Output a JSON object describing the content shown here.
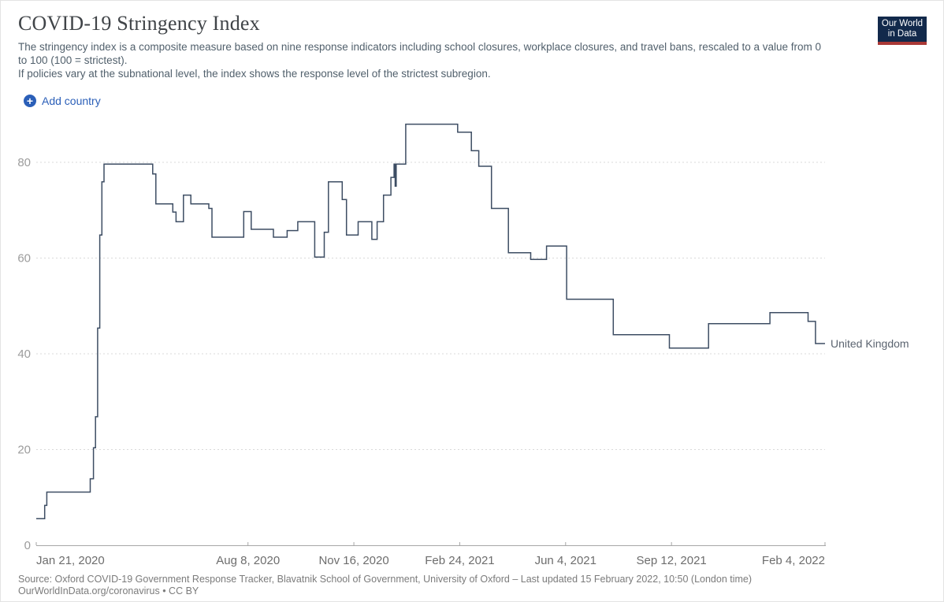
{
  "header": {
    "title": "COVID-19 Stringency Index",
    "subtitle_line1": "The stringency index is a composite measure based on nine response indicators including school closures, workplace closures, and travel bans, rescaled to a value from 0 to 100 (100 = strictest).",
    "subtitle_line2": "If policies vary at the subnational level, the index shows the response level of the strictest subregion.",
    "logo": {
      "line1": "Our World",
      "line2": "in Data"
    }
  },
  "controls": {
    "add_country_label": "Add country",
    "plus_glyph": "+"
  },
  "chart_data": {
    "type": "line",
    "title": "COVID-19 Stringency Index",
    "x_start_date": "2020-01-21",
    "x_end_date": "2022-02-04",
    "ylim": [
      0,
      90
    ],
    "grid": "dashed-horizontal",
    "legend_position": "end-of-line-label",
    "y_ticks": [
      0,
      20,
      40,
      60,
      80
    ],
    "x_ticks": [
      {
        "label": "Jan 21, 2020",
        "day": 0,
        "anchor": "start"
      },
      {
        "label": "Aug 8, 2020",
        "day": 200,
        "anchor": "middle"
      },
      {
        "label": "Nov 16, 2020",
        "day": 300,
        "anchor": "middle"
      },
      {
        "label": "Feb 24, 2021",
        "day": 400,
        "anchor": "middle"
      },
      {
        "label": "Jun 4, 2021",
        "day": 500,
        "anchor": "middle"
      },
      {
        "label": "Sep 12, 2021",
        "day": 600,
        "anchor": "middle"
      },
      {
        "label": "Feb 4, 2022",
        "day": 745,
        "anchor": "end"
      }
    ],
    "series": [
      {
        "name": "United Kingdom",
        "color": "#3d4d63",
        "line_style": "step-after",
        "points": [
          [
            "2020-01-21",
            5.56
          ],
          [
            "2020-01-29",
            8.33
          ],
          [
            "2020-01-31",
            11.11
          ],
          [
            "2020-03-12",
            13.89
          ],
          [
            "2020-03-15",
            20.37
          ],
          [
            "2020-03-17",
            26.85
          ],
          [
            "2020-03-19",
            45.37
          ],
          [
            "2020-03-21",
            64.81
          ],
          [
            "2020-03-23",
            75.93
          ],
          [
            "2020-03-25",
            79.63
          ],
          [
            "2020-05-10",
            77.55
          ],
          [
            "2020-05-13",
            71.3
          ],
          [
            "2020-05-29",
            69.6
          ],
          [
            "2020-06-01",
            67.59
          ],
          [
            "2020-06-08",
            73.15
          ],
          [
            "2020-06-15",
            71.3
          ],
          [
            "2020-07-02",
            70.37
          ],
          [
            "2020-07-05",
            64.35
          ],
          [
            "2020-08-04",
            69.7
          ],
          [
            "2020-08-11",
            66.0
          ],
          [
            "2020-09-01",
            64.35
          ],
          [
            "2020-09-14",
            65.74
          ],
          [
            "2020-09-24",
            67.59
          ],
          [
            "2020-10-10",
            60.19
          ],
          [
            "2020-10-19",
            65.4
          ],
          [
            "2020-10-23",
            75.93
          ],
          [
            "2020-11-05",
            72.22
          ],
          [
            "2020-11-09",
            64.81
          ],
          [
            "2020-11-20",
            67.59
          ],
          [
            "2020-12-03",
            63.89
          ],
          [
            "2020-12-08",
            67.59
          ],
          [
            "2020-12-14",
            73.15
          ],
          [
            "2020-12-21",
            76.85
          ],
          [
            "2020-12-24",
            79.63
          ],
          [
            "2020-12-25",
            75.0
          ],
          [
            "2020-12-26",
            79.63
          ],
          [
            "2021-01-04",
            87.96
          ],
          [
            "2021-02-22",
            86.3
          ],
          [
            "2021-03-07",
            82.41
          ],
          [
            "2021-03-14",
            79.17
          ],
          [
            "2021-03-26",
            70.37
          ],
          [
            "2021-04-11",
            61.11
          ],
          [
            "2021-05-02",
            59.72
          ],
          [
            "2021-05-17",
            62.5
          ],
          [
            "2021-06-05",
            51.39
          ],
          [
            "2021-07-19",
            43.98
          ],
          [
            "2021-09-10",
            41.2
          ],
          [
            "2021-10-17",
            46.3
          ],
          [
            "2021-12-14",
            48.61
          ],
          [
            "2022-01-19",
            46.76
          ],
          [
            "2022-01-26",
            42.13
          ],
          [
            "2022-02-04",
            42.13
          ]
        ]
      }
    ],
    "colors": {
      "line": "#3d4d63",
      "gridline": "#d9d9d9",
      "axis": "#a6a6a6",
      "y_tick_label": "#9c9c9c",
      "x_tick_label": "#6d6d6d",
      "series_label": "#5b6470"
    }
  },
  "footer": {
    "source": "Source: Oxford COVID-19 Government Response Tracker, Blavatnik School of Government, University of Oxford – Last updated 15 February 2022, 10:50 (London time)",
    "link_text": "OurWorldInData.org/coronavirus",
    "separator": " • ",
    "license": "CC BY"
  }
}
